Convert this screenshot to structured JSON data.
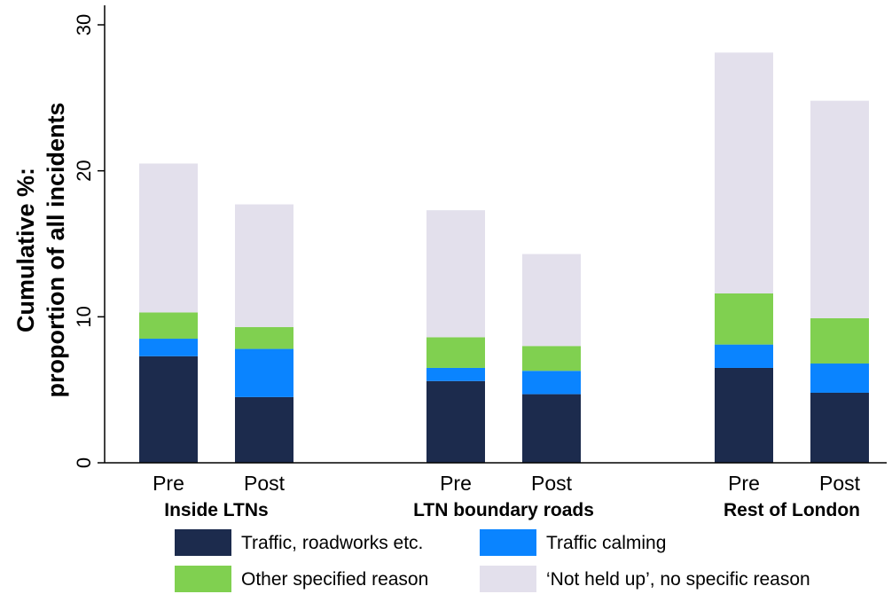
{
  "chart_data": {
    "type": "bar",
    "stacked": true,
    "ylabel_lines": [
      "Cumulative %:",
      "proportion of all incidents"
    ],
    "ylim": [
      0,
      30
    ],
    "yticks": [
      0,
      10,
      20,
      30
    ],
    "groups": [
      {
        "label": "Inside LTNs",
        "categories": [
          "Pre",
          "Post"
        ]
      },
      {
        "label": "LTN boundary roads",
        "categories": [
          "Pre",
          "Post"
        ]
      },
      {
        "label": "Rest of London",
        "categories": [
          "Pre",
          "Post"
        ]
      }
    ],
    "series": [
      {
        "name": "Traffic, roadworks etc.",
        "color": "#1c2b4d",
        "values": [
          7.3,
          4.5,
          5.6,
          4.7,
          6.5,
          4.8
        ]
      },
      {
        "name": "Traffic calming",
        "color": "#0a84ff",
        "values": [
          1.2,
          3.3,
          0.9,
          1.6,
          1.6,
          2.0
        ]
      },
      {
        "name": "Other specified reason",
        "color": "#80d050",
        "values": [
          1.8,
          1.5,
          2.1,
          1.7,
          3.5,
          3.1
        ]
      },
      {
        "name": "‘Not held up’, no specific reason",
        "color": "#e3e0ec",
        "values": [
          10.2,
          8.4,
          8.7,
          6.3,
          16.5,
          14.9
        ]
      }
    ],
    "legend_position": "bottom"
  }
}
